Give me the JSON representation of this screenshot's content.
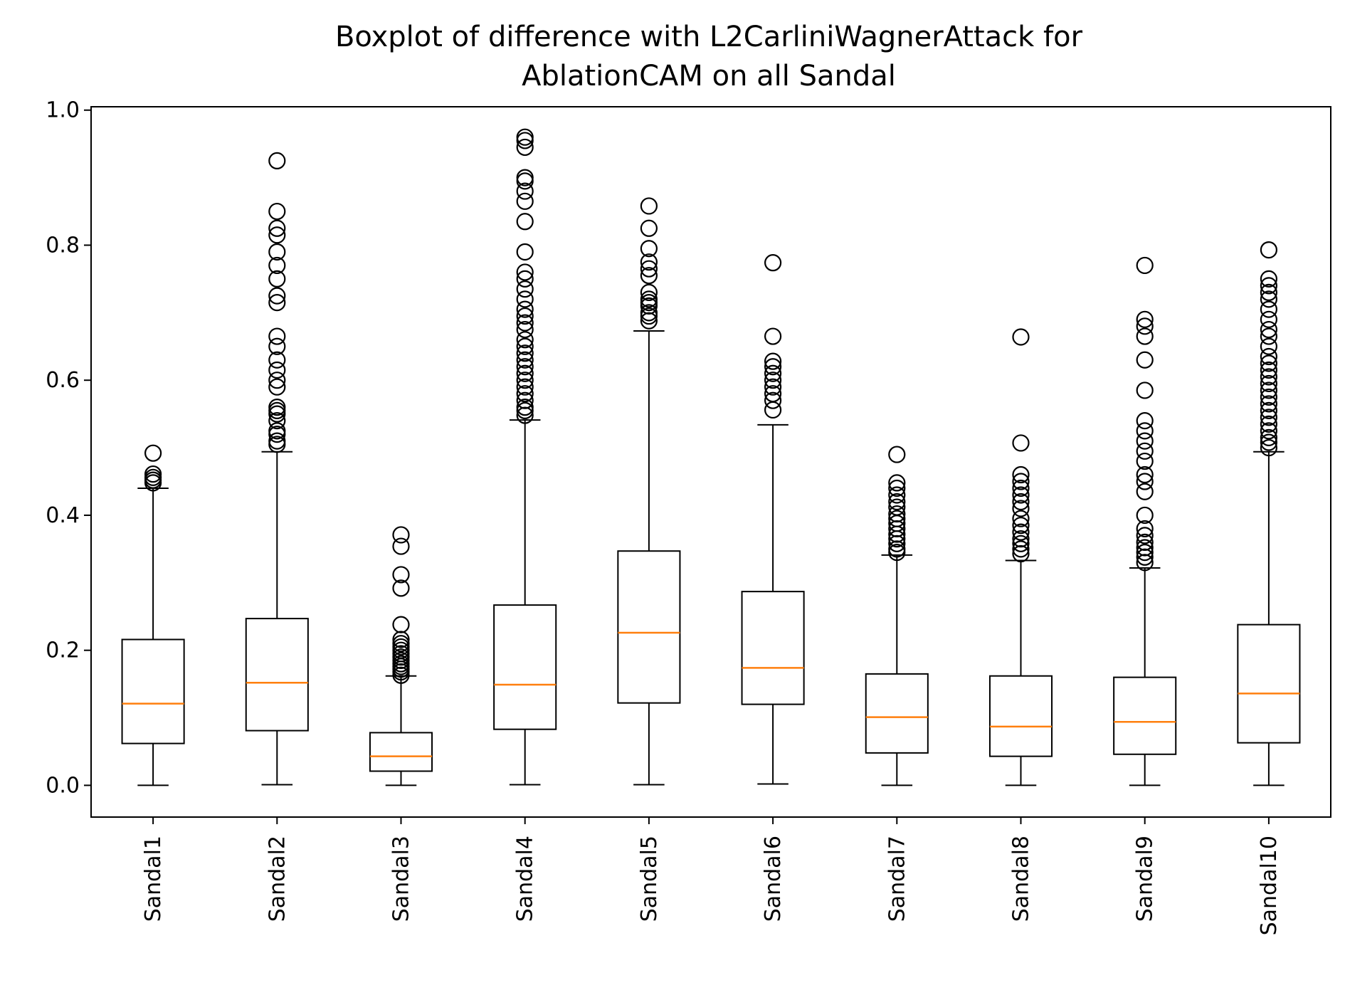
{
  "chart_data": {
    "type": "boxplot",
    "title_lines": [
      "Boxplot of difference with L2CarliniWagnerAttack for",
      "AblationCAM on all Sandal"
    ],
    "xlabel": "",
    "ylabel": "",
    "ylim": [
      -0.047,
      1.005
    ],
    "yticks": [
      0.0,
      0.2,
      0.4,
      0.6,
      0.8,
      1.0
    ],
    "ytick_labels": [
      "0.0",
      "0.2",
      "0.4",
      "0.6",
      "0.8",
      "1.0"
    ],
    "grid": false,
    "colors": {
      "box": "#000000",
      "median": "#ff7f0e",
      "flier": "#000000"
    },
    "boxes": [
      {
        "label": "Sandal1",
        "whisker_low": 0.0,
        "q1": 0.062,
        "median": 0.121,
        "q3": 0.216,
        "whisker_high": 0.44,
        "outliers": [
          0.448,
          0.452,
          0.456,
          0.461,
          0.492
        ]
      },
      {
        "label": "Sandal2",
        "whisker_low": 0.001,
        "q1": 0.081,
        "median": 0.152,
        "q3": 0.247,
        "whisker_high": 0.494,
        "outliers": [
          0.505,
          0.51,
          0.52,
          0.525,
          0.54,
          0.55,
          0.555,
          0.56,
          0.59,
          0.6,
          0.615,
          0.63,
          0.65,
          0.665,
          0.715,
          0.725,
          0.75,
          0.77,
          0.79,
          0.815,
          0.825,
          0.85,
          0.925
        ]
      },
      {
        "label": "Sandal3",
        "whisker_low": 0.0,
        "q1": 0.021,
        "median": 0.043,
        "q3": 0.078,
        "whisker_high": 0.162,
        "outliers": [
          0.163,
          0.168,
          0.172,
          0.176,
          0.18,
          0.185,
          0.19,
          0.195,
          0.2,
          0.205,
          0.21,
          0.216,
          0.238,
          0.292,
          0.312,
          0.354,
          0.371
        ]
      },
      {
        "label": "Sandal4",
        "whisker_low": 0.001,
        "q1": 0.083,
        "median": 0.149,
        "q3": 0.267,
        "whisker_high": 0.541,
        "outliers": [
          0.548,
          0.555,
          0.56,
          0.57,
          0.58,
          0.59,
          0.6,
          0.61,
          0.62,
          0.63,
          0.64,
          0.65,
          0.66,
          0.675,
          0.685,
          0.695,
          0.705,
          0.72,
          0.735,
          0.75,
          0.76,
          0.79,
          0.835,
          0.865,
          0.88,
          0.895,
          0.9,
          0.945,
          0.955,
          0.96
        ]
      },
      {
        "label": "Sandal5",
        "whisker_low": 0.001,
        "q1": 0.122,
        "median": 0.226,
        "q3": 0.347,
        "whisker_high": 0.673,
        "outliers": [
          0.688,
          0.695,
          0.7,
          0.71,
          0.715,
          0.72,
          0.73,
          0.755,
          0.765,
          0.775,
          0.795,
          0.825,
          0.858
        ]
      },
      {
        "label": "Sandal6",
        "whisker_low": 0.002,
        "q1": 0.12,
        "median": 0.174,
        "q3": 0.287,
        "whisker_high": 0.534,
        "outliers": [
          0.556,
          0.57,
          0.58,
          0.59,
          0.6,
          0.61,
          0.62,
          0.628,
          0.665,
          0.774
        ]
      },
      {
        "label": "Sandal7",
        "whisker_low": 0.0,
        "q1": 0.048,
        "median": 0.101,
        "q3": 0.165,
        "whisker_high": 0.341,
        "outliers": [
          0.345,
          0.35,
          0.358,
          0.365,
          0.372,
          0.38,
          0.388,
          0.395,
          0.402,
          0.412,
          0.42,
          0.43,
          0.44,
          0.448,
          0.49
        ]
      },
      {
        "label": "Sandal8",
        "whisker_low": 0.0,
        "q1": 0.043,
        "median": 0.087,
        "q3": 0.162,
        "whisker_high": 0.333,
        "outliers": [
          0.343,
          0.35,
          0.358,
          0.365,
          0.375,
          0.385,
          0.395,
          0.41,
          0.42,
          0.43,
          0.44,
          0.45,
          0.46,
          0.507,
          0.664
        ]
      },
      {
        "label": "Sandal9",
        "whisker_low": 0.0,
        "q1": 0.046,
        "median": 0.094,
        "q3": 0.16,
        "whisker_high": 0.322,
        "outliers": [
          0.33,
          0.338,
          0.345,
          0.352,
          0.36,
          0.37,
          0.38,
          0.4,
          0.435,
          0.45,
          0.46,
          0.48,
          0.495,
          0.51,
          0.525,
          0.54,
          0.585,
          0.63,
          0.665,
          0.68,
          0.69,
          0.77
        ]
      },
      {
        "label": "Sandal10",
        "whisker_low": 0.0,
        "q1": 0.063,
        "median": 0.136,
        "q3": 0.238,
        "whisker_high": 0.494,
        "outliers": [
          0.5,
          0.508,
          0.515,
          0.525,
          0.535,
          0.545,
          0.555,
          0.565,
          0.575,
          0.585,
          0.595,
          0.605,
          0.615,
          0.625,
          0.635,
          0.65,
          0.665,
          0.675,
          0.69,
          0.705,
          0.72,
          0.73,
          0.74,
          0.75,
          0.793
        ]
      }
    ]
  }
}
